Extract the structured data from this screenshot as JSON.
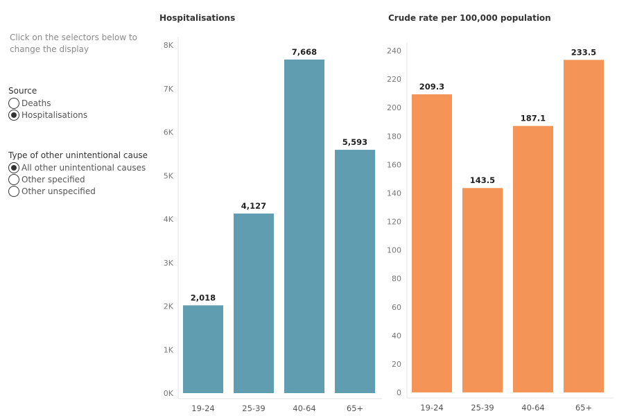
{
  "instructions": "Click on the selectors below to change the display",
  "source": {
    "title": "Source",
    "options": [
      {
        "label": "Deaths",
        "checked": false
      },
      {
        "label": "Hospitalisations",
        "checked": true
      }
    ]
  },
  "cause_type": {
    "title": "Type of other unintentional cause",
    "options": [
      {
        "label": "All other unintentional causes",
        "checked": true
      },
      {
        "label": "Other specified",
        "checked": false
      },
      {
        "label": "Other unspecified",
        "checked": false
      }
    ]
  },
  "chart_data": [
    {
      "type": "bar",
      "title": "Hospitalisations",
      "categories": [
        "19-24",
        "25-39",
        "40-64",
        "65+"
      ],
      "values": [
        2018,
        4127,
        7668,
        5593
      ],
      "value_labels": [
        "2,018",
        "4,127",
        "7,668",
        "5,593"
      ],
      "ylim": [
        0,
        8000
      ],
      "yticks": [
        0,
        1000,
        2000,
        3000,
        4000,
        5000,
        6000,
        7000,
        8000
      ],
      "ytick_labels": [
        "0K",
        "1K",
        "2K",
        "3K",
        "4K",
        "5K",
        "6K",
        "7K",
        "8K"
      ],
      "color": "#609db0",
      "grid": false
    },
    {
      "type": "bar",
      "title": "Crude rate per 100,000 population",
      "categories": [
        "19-24",
        "25-39",
        "40-64",
        "65+"
      ],
      "values": [
        209.3,
        143.5,
        187.1,
        233.5
      ],
      "value_labels": [
        "209.3",
        "143.5",
        "187.1",
        "233.5"
      ],
      "ylim": [
        0,
        240
      ],
      "yticks": [
        0,
        20,
        40,
        60,
        80,
        100,
        120,
        140,
        160,
        180,
        200,
        220,
        240
      ],
      "ytick_labels": [
        "0",
        "20",
        "40",
        "60",
        "80",
        "100",
        "120",
        "140",
        "160",
        "180",
        "200",
        "220",
        "240"
      ],
      "color": "#f49456",
      "grid": false
    }
  ]
}
